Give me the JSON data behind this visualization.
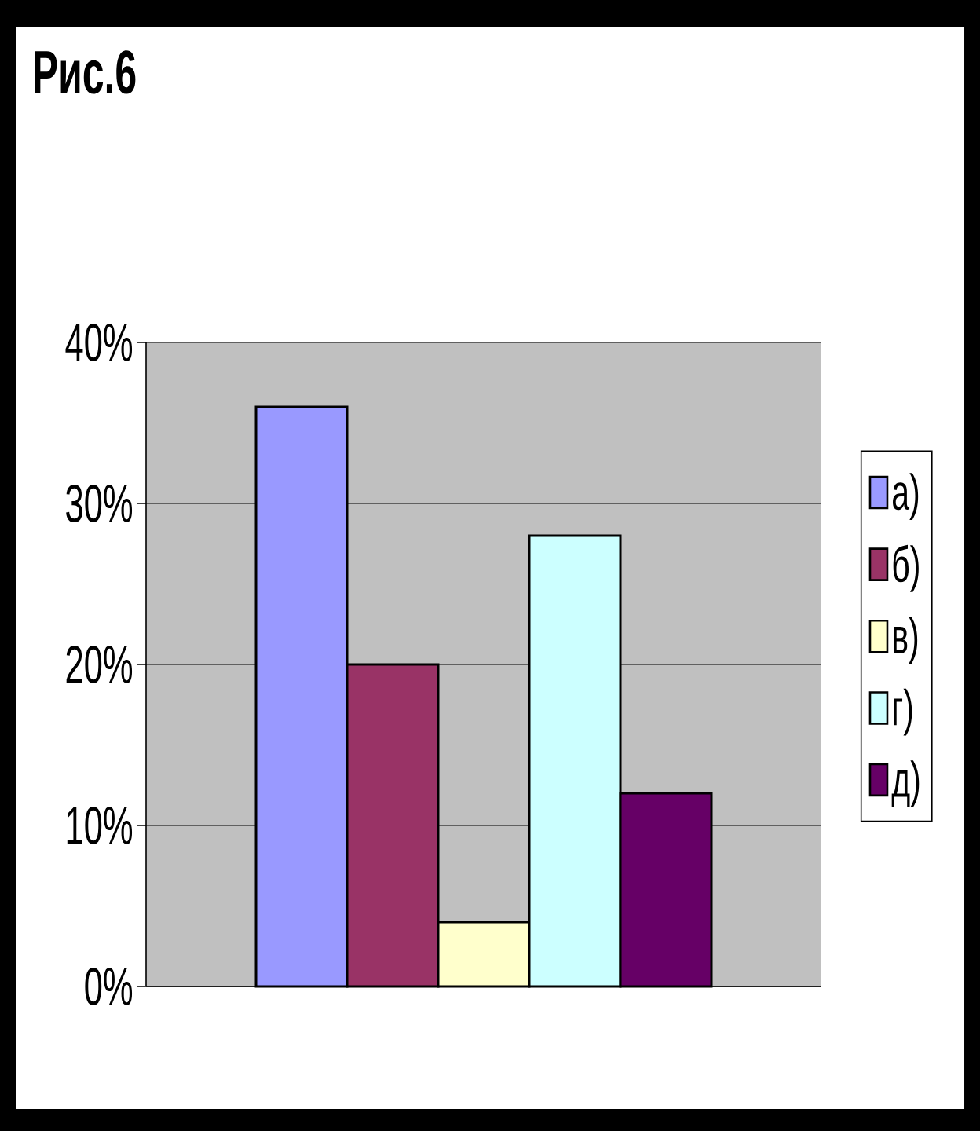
{
  "chart_data": {
    "type": "bar",
    "title": "Рис.6",
    "categories": [
      null
    ],
    "series": [
      {
        "name": "а)",
        "color": "#9999ff",
        "values": [
          36
        ]
      },
      {
        "name": "б)",
        "color": "#993366",
        "values": [
          20
        ]
      },
      {
        "name": "в)",
        "color": "#ffffcc",
        "values": [
          4
        ]
      },
      {
        "name": "г)",
        "color": "#ccffff",
        "values": [
          28
        ]
      },
      {
        "name": "д)",
        "color": "#660066",
        "values": [
          12
        ]
      }
    ],
    "ylim": [
      0,
      40
    ],
    "yticks": [
      {
        "value": 0,
        "label": "0%"
      },
      {
        "value": 10,
        "label": "10%"
      },
      {
        "value": 20,
        "label": "20%"
      },
      {
        "value": 30,
        "label": "30%"
      },
      {
        "value": 40,
        "label": "40%"
      }
    ],
    "grid": "y",
    "legend": "right"
  }
}
